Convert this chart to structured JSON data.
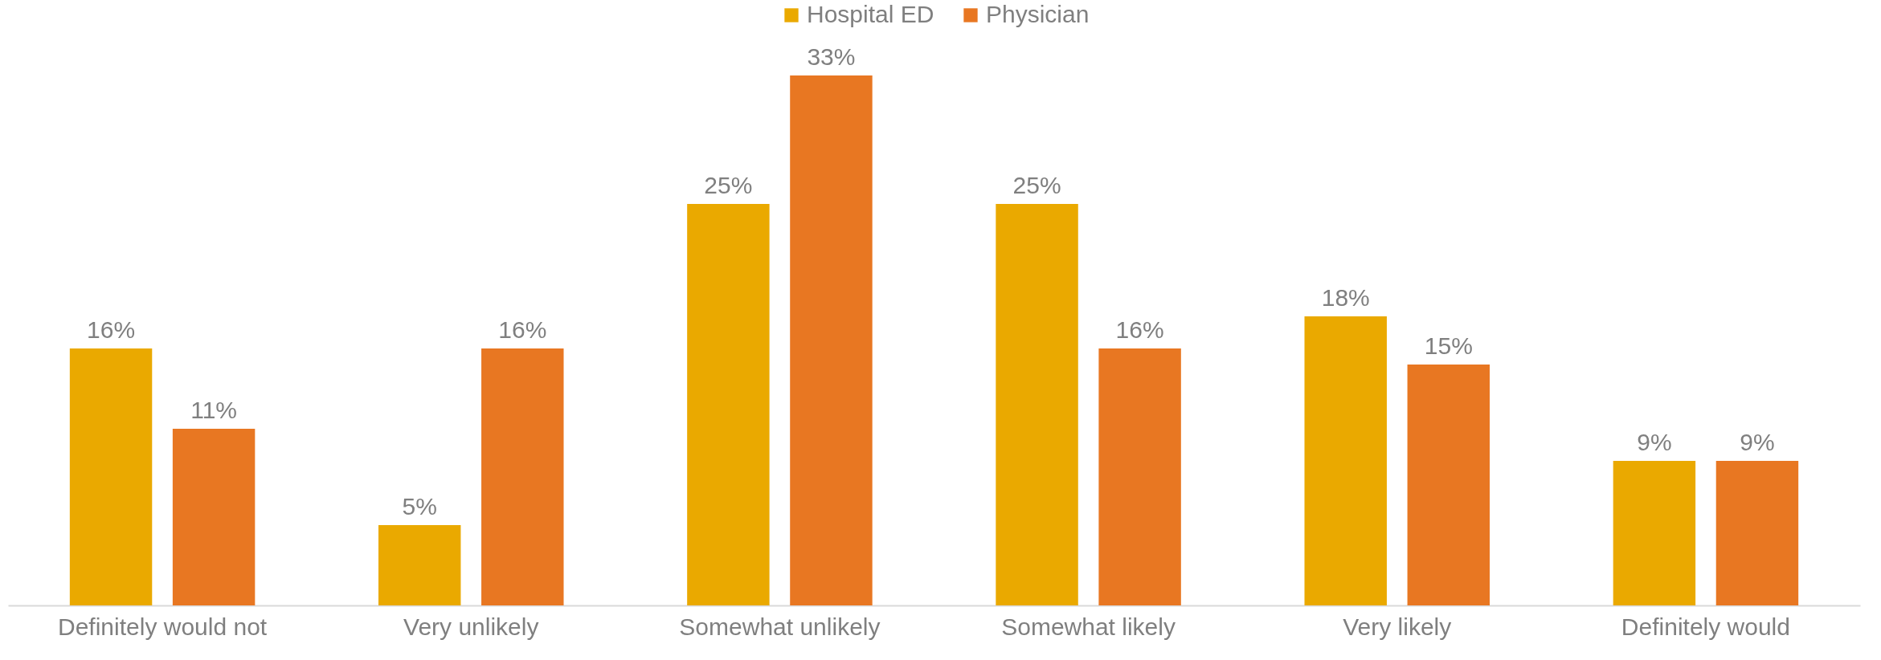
{
  "chart_data": {
    "type": "bar",
    "categories": [
      "Definitely would not",
      "Very unlikely",
      "Somewhat unlikely",
      "Somewhat likely",
      "Very likely",
      "Definitely would"
    ],
    "series": [
      {
        "name": "Hospital ED",
        "color": "#eaa900",
        "values": [
          16,
          5,
          25,
          25,
          18,
          9
        ],
        "value_labels": [
          "16%",
          "5%",
          "25%",
          "25%",
          "18%",
          "9%"
        ]
      },
      {
        "name": "Physician",
        "color": "#e87722",
        "values": [
          11,
          16,
          33,
          16,
          15,
          9
        ],
        "value_labels": [
          "11%",
          "16%",
          "33%",
          "16%",
          "15%",
          "9%"
        ]
      }
    ],
    "legend": "top"
  }
}
